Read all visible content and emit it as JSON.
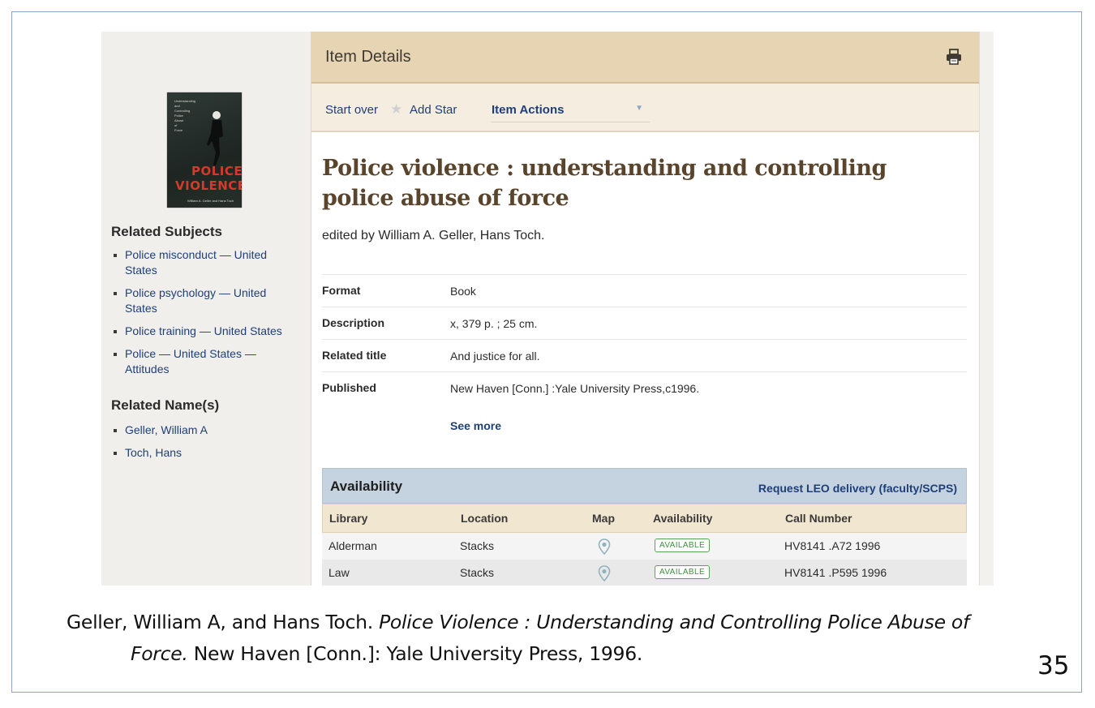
{
  "item_details": {
    "header_title": "Item Details",
    "toolbar": {
      "start_over": "Start over",
      "add_star": "Add Star",
      "item_actions": "Item Actions"
    },
    "cover": {
      "tiny_text": [
        "Understanding",
        "and",
        "Controlling",
        "Police",
        "Abuse",
        "of",
        "Force"
      ],
      "title_line1": "POLICE",
      "title_line2": "VIOLENCE",
      "authors": "William A. Geller and Hans Toch"
    },
    "title": "Police violence : understanding and controlling police abuse of force",
    "byline": "edited by William A. Geller, Hans Toch.",
    "fields": [
      {
        "label": "Format",
        "value": "Book"
      },
      {
        "label": "Description",
        "value": "x, 379 p. ; 25 cm."
      },
      {
        "label": "Related title",
        "value": "And justice for all."
      },
      {
        "label": "Published",
        "value": "New Haven [Conn.] :Yale University Press,c1996."
      }
    ],
    "see_more": "See more"
  },
  "sidebar": {
    "subjects_heading": "Related Subjects",
    "subjects": [
      {
        "line1": "Police misconduct — United",
        "line2": "States"
      },
      {
        "line1": "Police psychology — United",
        "line2": "States"
      },
      {
        "line1": "Police training — United States",
        "line2": ""
      },
      {
        "line1": "Police — United States —",
        "line2": "Attitudes"
      }
    ],
    "names_heading": "Related Name(s)",
    "names": [
      "Geller, William A",
      "Toch, Hans"
    ]
  },
  "availability": {
    "heading": "Availability",
    "request_link": "Request LEO delivery (faculty/SCPS)",
    "columns": [
      "Library",
      "Location",
      "Map",
      "Availability",
      "Call Number"
    ],
    "rows": [
      {
        "library": "Alderman",
        "location": "Stacks",
        "status": "AVAILABLE",
        "call_number": "HV8141 .A72 1996"
      },
      {
        "library": "Law",
        "location": "Stacks",
        "status": "AVAILABLE",
        "call_number": "HV8141 .P595 1996"
      }
    ]
  },
  "citation": {
    "part1": "Geller, William A, and Hans Toch. ",
    "title_a": "Police Violence : Understanding and Controlling Police Abuse of",
    "title_b": "Force.",
    "part2": " New Haven [Conn.]: Yale University Press, 1996."
  },
  "slide_number": "35",
  "colors": {
    "header_bg": "#e7d4b3",
    "link": "#1f3f78",
    "title": "#5a452c",
    "available": "#3e8f3e"
  }
}
